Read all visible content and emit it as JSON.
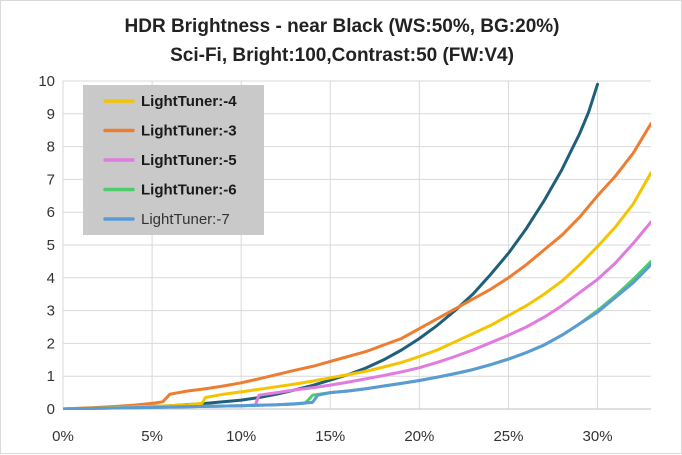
{
  "chart_data": {
    "type": "line",
    "title_lines": [
      "HDR Brightness - near Black (WS:50%, BG:20%)",
      "Sci-Fi, Bright:100,Contrast:50 (FW:V4)"
    ],
    "xlabel": "",
    "ylabel": "",
    "xlim": [
      0,
      33
    ],
    "ylim": [
      0,
      10
    ],
    "x_ticks": [
      0,
      5,
      10,
      15,
      20,
      25,
      30
    ],
    "x_tick_labels": [
      "0%",
      "5%",
      "10%",
      "15%",
      "20%",
      "25%",
      "30%"
    ],
    "y_ticks": [
      0,
      1,
      2,
      3,
      4,
      5,
      6,
      7,
      8,
      9,
      10
    ],
    "y_tick_labels": [
      "0",
      "1",
      "2",
      "3",
      "4",
      "5",
      "6",
      "7",
      "8",
      "9",
      "10"
    ],
    "grid": true,
    "legend_position": "top-left",
    "series": [
      {
        "name": "",
        "color": "#1f5f7a",
        "in_legend": false,
        "x": [
          0,
          2,
          4,
          6,
          8,
          10,
          11,
          12,
          13,
          14,
          15,
          16,
          17,
          18,
          19,
          20,
          21,
          22,
          23,
          24,
          25,
          26,
          27,
          28,
          29,
          29.5,
          30
        ],
        "y": [
          0,
          0.03,
          0.06,
          0.1,
          0.17,
          0.27,
          0.35,
          0.45,
          0.58,
          0.72,
          0.88,
          1.05,
          1.25,
          1.5,
          1.8,
          2.15,
          2.55,
          3.0,
          3.5,
          4.1,
          4.75,
          5.5,
          6.35,
          7.3,
          8.4,
          9.05,
          9.9
        ]
      },
      {
        "name": "LightTuner:-3",
        "color": "#ed7d31",
        "in_legend": true,
        "x": [
          0,
          2,
          3,
          4,
          5,
          5.6,
          6,
          7,
          8,
          9,
          10,
          11,
          12,
          13,
          14,
          15,
          16,
          17,
          18,
          19,
          20,
          21,
          22,
          23,
          24,
          25,
          26,
          27,
          28,
          29,
          30,
          31,
          32,
          33
        ],
        "y": [
          0,
          0.05,
          0.08,
          0.12,
          0.17,
          0.22,
          0.45,
          0.55,
          0.62,
          0.7,
          0.8,
          0.92,
          1.05,
          1.18,
          1.3,
          1.45,
          1.6,
          1.75,
          1.95,
          2.15,
          2.45,
          2.75,
          3.05,
          3.35,
          3.65,
          4.0,
          4.4,
          4.85,
          5.3,
          5.85,
          6.5,
          7.1,
          7.8,
          8.7
        ]
      },
      {
        "name": "LightTuner:-4",
        "color": "#f5c400",
        "in_legend": true,
        "x": [
          0,
          2,
          4,
          6,
          7,
          7.8,
          8,
          9,
          10,
          11,
          12,
          13,
          14,
          15,
          16,
          17,
          18,
          19,
          20,
          21,
          22,
          23,
          24,
          25,
          26,
          27,
          28,
          29,
          30,
          31,
          32,
          33
        ],
        "y": [
          0,
          0.03,
          0.06,
          0.1,
          0.13,
          0.17,
          0.35,
          0.45,
          0.52,
          0.6,
          0.68,
          0.76,
          0.85,
          0.95,
          1.05,
          1.15,
          1.28,
          1.42,
          1.6,
          1.8,
          2.05,
          2.3,
          2.55,
          2.85,
          3.15,
          3.5,
          3.9,
          4.4,
          4.95,
          5.55,
          6.25,
          7.2
        ]
      },
      {
        "name": "LightTuner:-5",
        "color": "#e07be0",
        "in_legend": true,
        "x": [
          0,
          2,
          4,
          6,
          8,
          10,
          10.8,
          11,
          12,
          13,
          14,
          15,
          16,
          17,
          18,
          19,
          20,
          21,
          22,
          23,
          24,
          25,
          26,
          27,
          28,
          29,
          30,
          31,
          32,
          33
        ],
        "y": [
          0,
          0.02,
          0.04,
          0.06,
          0.08,
          0.1,
          0.12,
          0.42,
          0.5,
          0.58,
          0.65,
          0.73,
          0.82,
          0.92,
          1.02,
          1.13,
          1.26,
          1.42,
          1.6,
          1.8,
          2.02,
          2.25,
          2.5,
          2.8,
          3.15,
          3.55,
          3.95,
          4.45,
          5.05,
          5.7
        ]
      },
      {
        "name": "LightTuner:-6",
        "color": "#4dcc6a",
        "in_legend": true,
        "x": [
          0,
          2,
          4,
          6,
          8,
          10,
          12,
          13,
          13.6,
          14,
          15,
          16,
          17,
          18,
          19,
          20,
          21,
          22,
          23,
          24,
          25,
          26,
          27,
          28,
          29,
          30,
          31,
          32,
          33
        ],
        "y": [
          0,
          0.02,
          0.04,
          0.06,
          0.08,
          0.1,
          0.13,
          0.15,
          0.18,
          0.42,
          0.5,
          0.55,
          0.62,
          0.7,
          0.78,
          0.87,
          0.97,
          1.08,
          1.2,
          1.35,
          1.52,
          1.72,
          1.95,
          2.25,
          2.6,
          3.0,
          3.45,
          3.95,
          4.5
        ]
      },
      {
        "name": "LightTuner:-7",
        "color": "#5b9bd5",
        "in_legend": true,
        "x": [
          0,
          2,
          4,
          6,
          8,
          10,
          12,
          13,
          14,
          14.3,
          15,
          16,
          17,
          18,
          19,
          20,
          21,
          22,
          23,
          24,
          25,
          26,
          27,
          28,
          29,
          30,
          31,
          32,
          33
        ],
        "y": [
          0,
          0.02,
          0.04,
          0.06,
          0.08,
          0.1,
          0.13,
          0.16,
          0.2,
          0.42,
          0.5,
          0.55,
          0.62,
          0.7,
          0.78,
          0.87,
          0.97,
          1.08,
          1.2,
          1.35,
          1.52,
          1.72,
          1.95,
          2.25,
          2.6,
          2.95,
          3.4,
          3.85,
          4.4
        ]
      }
    ],
    "legend_order": [
      "LightTuner:-4",
      "LightTuner:-3",
      "LightTuner:-5",
      "LightTuner:-6",
      "LightTuner:-7"
    ],
    "legend_bold": [
      true,
      true,
      true,
      true,
      false
    ]
  }
}
